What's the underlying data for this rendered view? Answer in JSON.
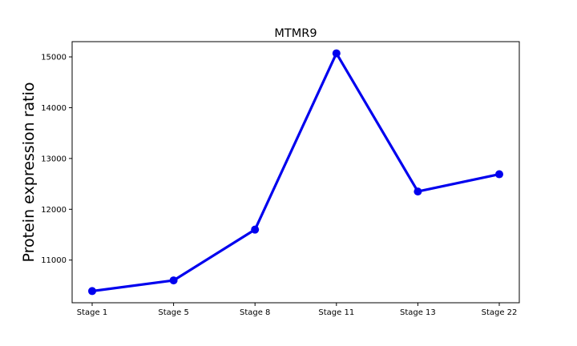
{
  "chart_data": {
    "type": "line",
    "title": "MTMR9",
    "xlabel": "",
    "ylabel": "Protein expression ratio",
    "categories": [
      "Stage 1",
      "Stage 5",
      "Stage 8",
      "Stage 11",
      "Stage 13",
      "Stage 22"
    ],
    "series": [
      {
        "values": [
          10390,
          10600,
          11600,
          15070,
          12350,
          12690
        ]
      }
    ],
    "ylim": [
      10160,
      15300
    ],
    "yticks": [
      11000,
      12000,
      13000,
      14000,
      15000
    ],
    "grid": false,
    "line_color": "#0000ee",
    "marker": "circle"
  }
}
